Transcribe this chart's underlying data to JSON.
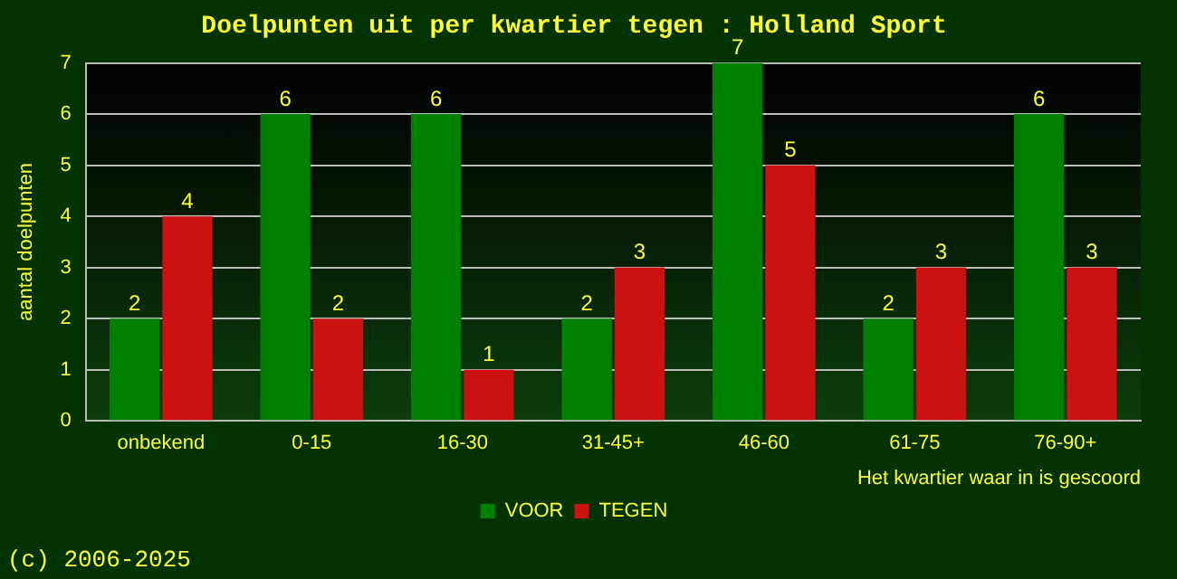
{
  "chart_data": {
    "type": "bar",
    "title": "Doelpunten uit per kwartier tegen : Holland Sport",
    "xlabel": "Het kwartier waar in is gescoord",
    "ylabel": "aantal doelpunten",
    "categories": [
      "onbekend",
      "0-15",
      "16-30",
      "31-45+",
      "46-60",
      "61-75",
      "76-90+"
    ],
    "series": [
      {
        "name": "VOOR",
        "color": "#008000",
        "values": [
          2,
          6,
          6,
          2,
          7,
          2,
          6
        ]
      },
      {
        "name": "TEGEN",
        "color": "#cc1111",
        "values": [
          4,
          2,
          1,
          3,
          5,
          3,
          3
        ]
      }
    ],
    "ylim": [
      0,
      7
    ],
    "yticks": [
      0,
      1,
      2,
      3,
      4,
      5,
      6,
      7
    ],
    "grid": "y",
    "legend": "bottom",
    "data_labels": true,
    "annotations": [
      "(c) 2006-2025"
    ]
  }
}
